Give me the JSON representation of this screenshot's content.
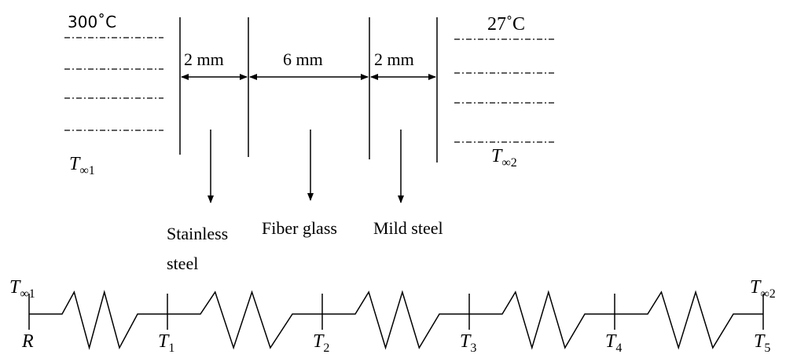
{
  "top": {
    "left_temp": "300˚C",
    "right_temp": "27˚C",
    "left_fluid": {
      "base": "T",
      "sub": "∞1"
    },
    "right_fluid": {
      "base": "T",
      "sub": "∞2"
    }
  },
  "thicknesses": [
    "2 mm",
    "6 mm",
    "2 mm"
  ],
  "materials": [
    {
      "lines": [
        "Stainless",
        "steel"
      ]
    },
    {
      "lines": [
        "Fiber glass"
      ]
    },
    {
      "lines": [
        "Mild steel"
      ]
    }
  ],
  "nodes": [
    {
      "above": {
        "base": "T",
        "sub": "∞1"
      },
      "below": {
        "base": "R"
      }
    },
    {
      "below": {
        "base": "T",
        "sub": "1"
      }
    },
    {
      "below": {
        "base": "T",
        "sub": "2"
      }
    },
    {
      "below": {
        "base": "T",
        "sub": "3"
      }
    },
    {
      "below": {
        "base": "T",
        "sub": "4"
      }
    },
    {
      "above": {
        "base": "T",
        "sub": "∞2"
      },
      "below": {
        "base": "T",
        "sub": "5"
      }
    }
  ]
}
